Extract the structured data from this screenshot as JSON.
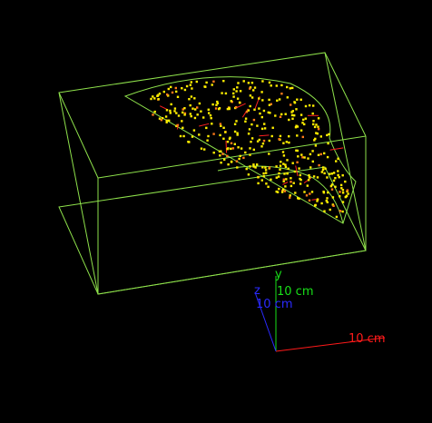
{
  "viewer": {
    "background": "#000000",
    "box_color": "#8ee14b",
    "hit_color": "#ffee00",
    "hit_accent_color": "#ff7a1a",
    "track_color": "#ff2020",
    "hit_count": 420,
    "track_count": 14
  },
  "axes": {
    "x": {
      "name": "",
      "label": "10 cm",
      "color": "#ff1a1a"
    },
    "y": {
      "name": "y",
      "label": "10 cm",
      "color": "#18e018"
    },
    "z": {
      "name": "z",
      "label": "10 cm",
      "color": "#2a2aff"
    }
  }
}
